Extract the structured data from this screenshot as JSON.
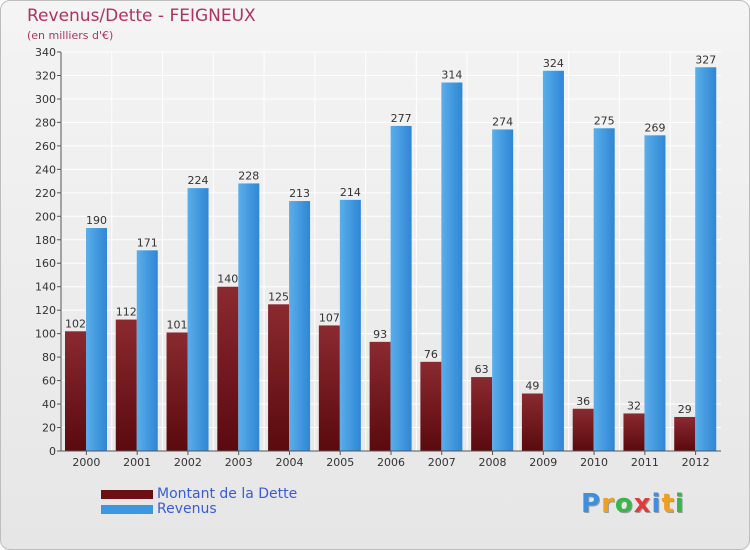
{
  "header": {
    "title": "Revenus/Dette - FEIGNEUX",
    "subtitle": "(en milliers d'€)"
  },
  "chart_data": {
    "type": "bar",
    "title": "Revenus/Dette - FEIGNEUX",
    "ylabel": "(en milliers d'€)",
    "xlabel": "",
    "ylim": [
      0,
      340
    ],
    "yticks": [
      0,
      20,
      40,
      60,
      80,
      100,
      120,
      140,
      160,
      180,
      200,
      220,
      240,
      260,
      280,
      300,
      320,
      340
    ],
    "grid": true,
    "categories": [
      "2000",
      "2001",
      "2002",
      "2003",
      "2004",
      "2005",
      "2006",
      "2007",
      "2008",
      "2009",
      "2010",
      "2011",
      "2012"
    ],
    "series": [
      {
        "name": "Montant de la Dette",
        "color": "#7a1e24",
        "values": [
          102,
          112,
          101,
          140,
          125,
          107,
          93,
          76,
          63,
          49,
          36,
          32,
          29
        ]
      },
      {
        "name": "Revenus",
        "color": "#3d97e0",
        "values": [
          190,
          171,
          224,
          228,
          213,
          214,
          277,
          314,
          274,
          324,
          275,
          269,
          327
        ]
      }
    ],
    "legend_position": "bottom-left"
  },
  "legend": {
    "items": [
      {
        "label": "Montant de la Dette",
        "color": "#6b0f14"
      },
      {
        "label": "Revenus",
        "color": "#3d97e0"
      }
    ]
  },
  "brand": {
    "logo_letters": [
      "P",
      "r",
      "o",
      "x",
      "i",
      "t",
      "i"
    ],
    "logo_colors": [
      "#3d8fe0",
      "#f0a020",
      "#39b54a",
      "#e03c3c",
      "#3d8fe0",
      "#f0a020",
      "#39b54a"
    ]
  }
}
